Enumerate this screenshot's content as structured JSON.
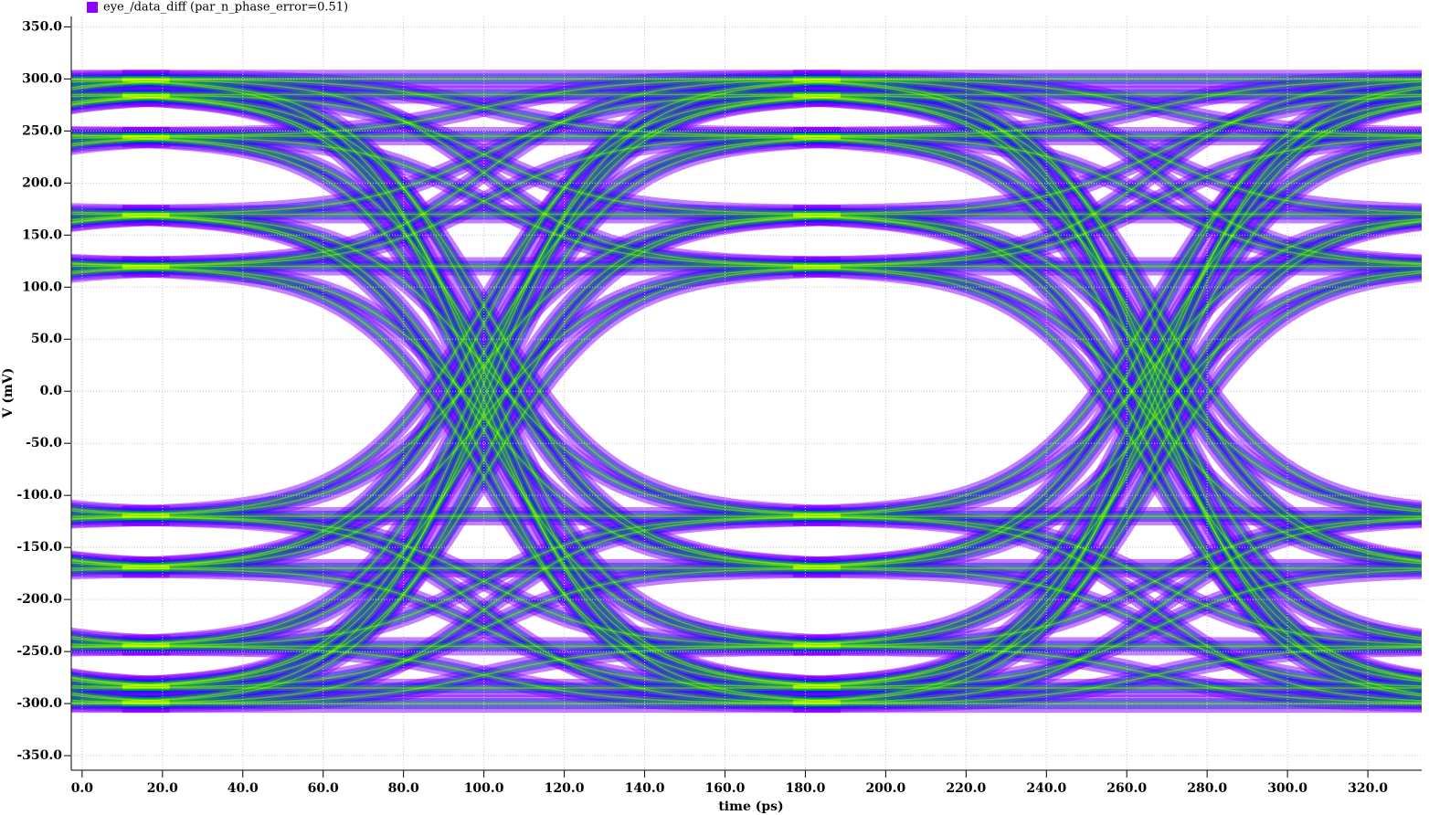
{
  "chart_data": {
    "type": "eye",
    "legend": "eye_/data_diff (par_n_phase_error=0.51)",
    "legend_color": "#8c00ff",
    "xlabel": "time (ps)",
    "ylabel": "V (mV)",
    "xlim": [
      -2.7,
      333.4
    ],
    "ylim": [
      -364,
      360
    ],
    "xticks": [
      {
        "value": 0,
        "label": "0.0"
      },
      {
        "value": 20,
        "label": "20.0"
      },
      {
        "value": 40,
        "label": "40.0"
      },
      {
        "value": 60,
        "label": "60.0"
      },
      {
        "value": 80,
        "label": "80.0"
      },
      {
        "value": 100,
        "label": "100.0"
      },
      {
        "value": 120,
        "label": "120.0"
      },
      {
        "value": 140,
        "label": "140.0"
      },
      {
        "value": 160,
        "label": "160.0"
      },
      {
        "value": 180,
        "label": "180.0"
      },
      {
        "value": 200,
        "label": "200.0"
      },
      {
        "value": 220,
        "label": "220.0"
      },
      {
        "value": 240,
        "label": "240.0"
      },
      {
        "value": 260,
        "label": "260.0"
      },
      {
        "value": 280,
        "label": "280.0"
      },
      {
        "value": 300,
        "label": "300.0"
      },
      {
        "value": 320,
        "label": "320.0"
      }
    ],
    "yticks": [
      {
        "value": 350,
        "label": "350.0"
      },
      {
        "value": 300,
        "label": "300.0"
      },
      {
        "value": 250,
        "label": "250.0"
      },
      {
        "value": 200,
        "label": "200.0"
      },
      {
        "value": 150,
        "label": "150.0"
      },
      {
        "value": 100,
        "label": "100.0"
      },
      {
        "value": 50,
        "label": "50.0"
      },
      {
        "value": 0,
        "label": "0.0"
      },
      {
        "value": -50,
        "label": "-50.0"
      },
      {
        "value": -100,
        "label": "-100.0"
      },
      {
        "value": -150,
        "label": "-150.0"
      },
      {
        "value": -200,
        "label": "-200.0"
      },
      {
        "value": -250,
        "label": "-250.0"
      },
      {
        "value": -300,
        "label": "-300.0"
      },
      {
        "value": -350,
        "label": "-350.0"
      }
    ],
    "grid": true
  }
}
